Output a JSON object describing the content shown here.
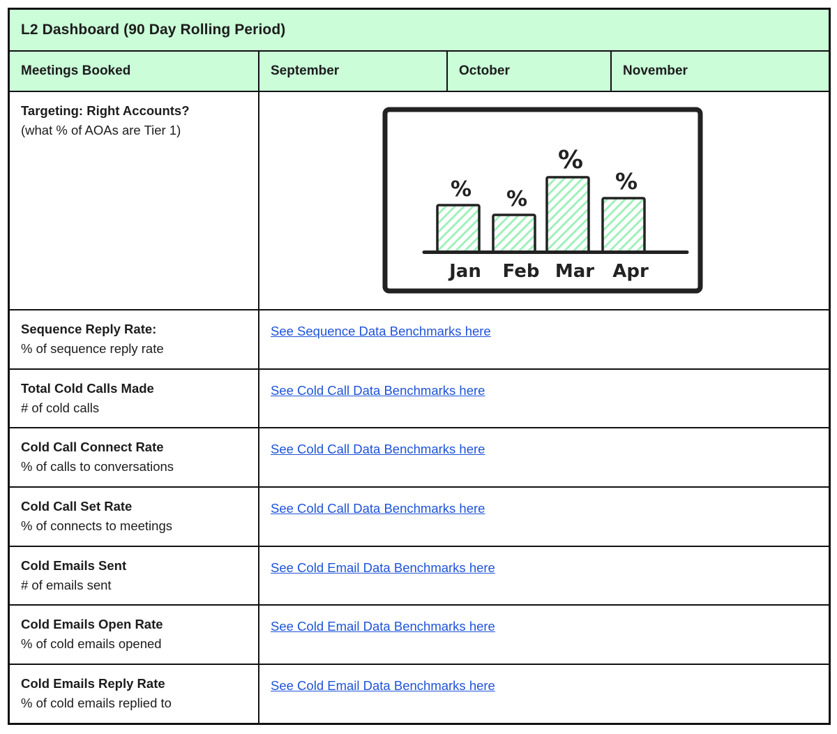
{
  "title": "L2 Dashboard (90 Day Rolling Period)",
  "header": {
    "metric_col": "Meetings Booked",
    "months": [
      "September",
      "October",
      "November"
    ]
  },
  "rows": [
    {
      "label_bold": "Targeting: Right Accounts?",
      "label_sub": "(what % of AOAs are Tier 1)",
      "content": "chart"
    },
    {
      "label_bold": "Sequence Reply Rate:",
      "label_sub": "% of sequence reply rate",
      "link": "See Sequence Data Benchmarks here"
    },
    {
      "label_bold": "Total Cold Calls Made",
      "label_sub": "# of cold calls",
      "link": "See Cold Call Data Benchmarks here"
    },
    {
      "label_bold": "Cold Call Connect Rate",
      "label_sub": "% of calls to conversations",
      "link": "See Cold Call Data Benchmarks here"
    },
    {
      "label_bold": "Cold Call Set Rate",
      "label_sub": "% of connects to meetings",
      "link": "See Cold Call Data Benchmarks here"
    },
    {
      "label_bold": "Cold Emails Sent",
      "label_sub": "# of emails sent",
      "link": "See Cold Email Data Benchmarks here"
    },
    {
      "label_bold": "Cold Emails Open Rate",
      "label_sub": "% of cold emails opened",
      "link": "See Cold Email Data Benchmarks here"
    },
    {
      "label_bold": "Cold Emails Reply Rate",
      "label_sub": "% of cold emails replied to",
      "link": "See Cold Email Data Benchmarks here"
    }
  ],
  "chart_data": {
    "type": "bar",
    "title": "",
    "xlabel": "",
    "ylabel": "",
    "categories": [
      "Jan",
      "Feb",
      "Mar",
      "Apr"
    ],
    "values": [
      67,
      53,
      107,
      77
    ],
    "value_units": "relative height (no numeric axis shown)",
    "bar_value_labels": [
      "%",
      "%",
      "%",
      "%"
    ],
    "axis": {
      "y_ticks": "none",
      "x_line": true,
      "grid": false
    },
    "style_note": "hand-drawn sketch, green diagonal hatch fill, black outlines"
  },
  "colors": {
    "header_bg": "#cafdd8",
    "border": "#111111",
    "link": "#1e53d8",
    "text": "#1c1c1c",
    "hatch": "#a0f0bb",
    "ink": "#222222"
  }
}
